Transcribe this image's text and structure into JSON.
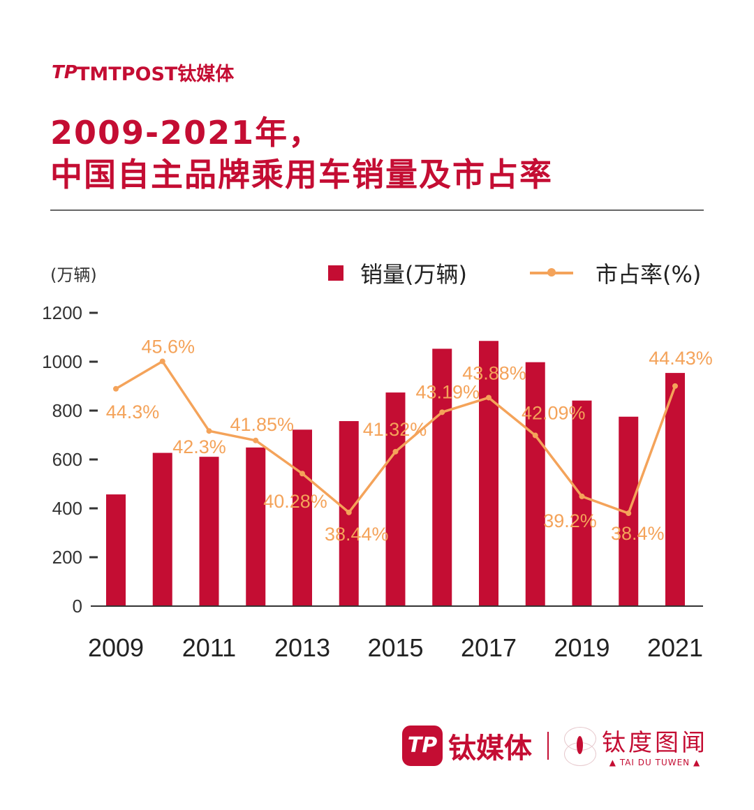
{
  "header": {
    "logo_text": "TMTPOST钛媒体",
    "title_line1": "2009-2021年，",
    "title_line2": "中国自主品牌乘用车销量及市占率"
  },
  "footer": {
    "brand": "钛媒体",
    "sub_brand": "钛度图闻",
    "sub_brand_en": "▲ TAI DU TUWEN ▲"
  },
  "chart_data": {
    "type": "bar+line",
    "title": "2009-2021年，中国自主品牌乘用车销量及市占率",
    "ylabel": "(万辆)",
    "legend_position": "top-right",
    "grid": false,
    "categories": [
      "2009",
      "2010",
      "2011",
      "2012",
      "2013",
      "2014",
      "2015",
      "2016",
      "2017",
      "2018",
      "2019",
      "2020",
      "2021"
    ],
    "x_tick_labels": [
      "2009",
      "2011",
      "2013",
      "2015",
      "2017",
      "2019",
      "2021"
    ],
    "ylim": [
      0,
      1200
    ],
    "y_ticks": [
      "0",
      "200",
      "400",
      "600",
      "800",
      "1000",
      "1200"
    ],
    "y2lim": [
      34,
      47.9
    ],
    "colors": {
      "bar": "#c40d33",
      "line": "#f4a35a"
    },
    "series": [
      {
        "name": "销量(万辆)",
        "type": "bar",
        "values": [
          457,
          627,
          611,
          649,
          722,
          757,
          874,
          1053,
          1085,
          998,
          841,
          775,
          954
        ]
      },
      {
        "name": "市占率(%)",
        "type": "line",
        "values": [
          44.3,
          45.6,
          42.3,
          41.85,
          40.28,
          38.44,
          41.32,
          43.19,
          43.88,
          42.09,
          39.2,
          38.4,
          44.43
        ],
        "labels": [
          "44.3%",
          "45.6%",
          "42.3%",
          "41.85%",
          "40.28%",
          "38.44%",
          "41.32%",
          "43.19%",
          "43.88%",
          "42.09%",
          "39.2%",
          "38.4%",
          "44.43%"
        ]
      }
    ]
  }
}
